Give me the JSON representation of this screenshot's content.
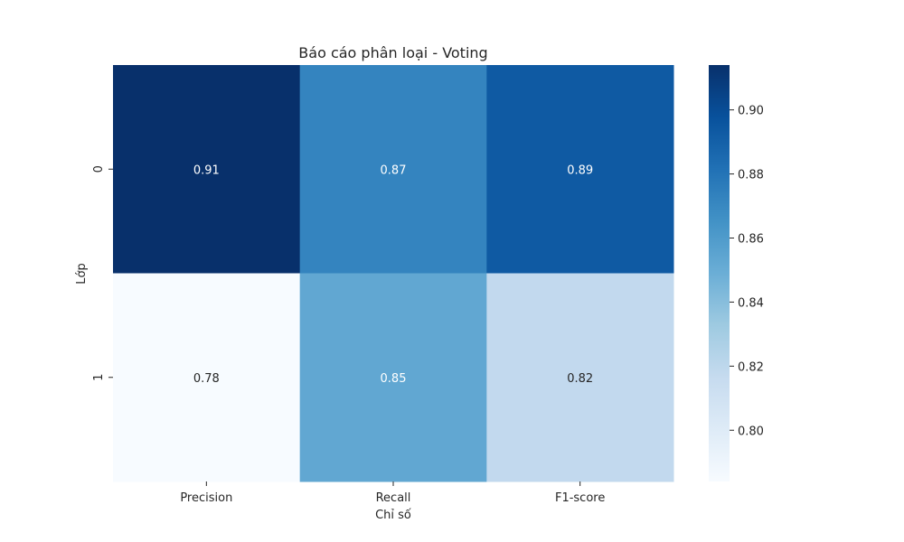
{
  "chart_data": {
    "type": "heatmap",
    "title": "Báo cáo phân loại - Voting",
    "xlabel": "Chỉ số",
    "ylabel": "Lớp",
    "x_categories": [
      "Precision",
      "Recall",
      "F1-score"
    ],
    "y_categories": [
      "0",
      "1"
    ],
    "values": [
      [
        0.914,
        0.872,
        0.893
      ],
      [
        0.784,
        0.853,
        0.818
      ]
    ],
    "annotations": [
      [
        "0.91",
        "0.87",
        "0.89"
      ],
      [
        "0.78",
        "0.85",
        "0.82"
      ]
    ],
    "colormap": "Blues",
    "color_range": [
      0.784,
      0.914
    ],
    "colorbar_ticks": [
      0.8,
      0.82,
      0.84,
      0.86,
      0.88,
      0.9
    ],
    "colorbar_tick_labels": [
      "0.80",
      "0.82",
      "0.84",
      "0.86",
      "0.88",
      "0.90"
    ],
    "colors": {
      "text_dark": "#262626",
      "text_light": "#ffffff"
    }
  }
}
